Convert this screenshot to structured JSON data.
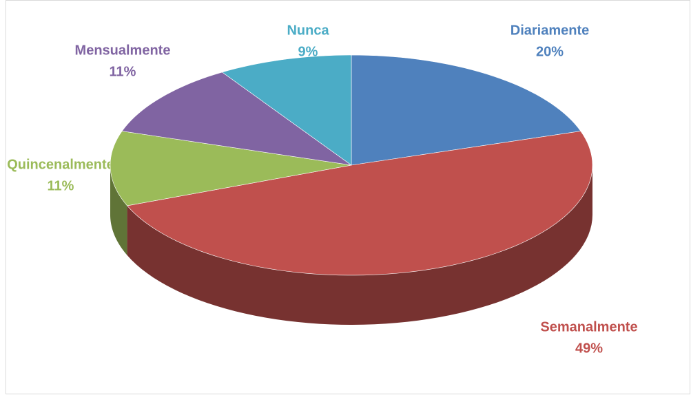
{
  "chart_data": {
    "type": "pie",
    "categories": [
      "Diariamente",
      "Semanalmente",
      "Quincenalmente",
      "Mensualmente",
      "Nunca"
    ],
    "values": [
      20,
      49,
      11,
      11,
      9
    ],
    "value_labels": [
      "20%",
      "49%",
      "11%",
      "11%",
      "9%"
    ],
    "colors": [
      "#4f81bd",
      "#c0504d",
      "#9bbb59",
      "#8064a2",
      "#4bacc6"
    ]
  }
}
